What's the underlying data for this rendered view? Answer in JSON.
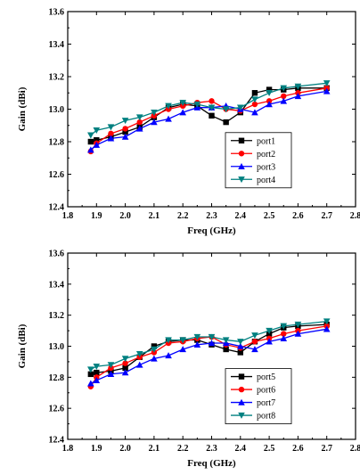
{
  "chart_data": [
    {
      "type": "line",
      "title": "",
      "xlabel": "Freq (GHz)",
      "ylabel": "Gain (dBi)",
      "xlim": [
        1.8,
        2.8
      ],
      "ylim": [
        12.4,
        13.6
      ],
      "xticks": [
        "1.8",
        "1.9",
        "2.0",
        "2.1",
        "2.2",
        "2.3",
        "2.4",
        "2.5",
        "2.6",
        "2.7",
        "2.8"
      ],
      "yticks": [
        "12.4",
        "12.6",
        "12.8",
        "13.0",
        "13.2",
        "13.4",
        "13.6"
      ],
      "grid": false,
      "legend_position": "lower-right",
      "series": [
        {
          "name": "port1",
          "color": "#000000",
          "marker": "square",
          "x": [
            1.88,
            1.9,
            1.95,
            2.0,
            2.05,
            2.1,
            2.15,
            2.2,
            2.25,
            2.3,
            2.35,
            2.4,
            2.45,
            2.5,
            2.55,
            2.6,
            2.7
          ],
          "y": [
            12.8,
            12.81,
            12.83,
            12.86,
            12.89,
            12.95,
            13.01,
            13.03,
            13.02,
            12.96,
            12.92,
            12.98,
            13.1,
            13.12,
            13.12,
            13.13,
            13.13
          ]
        },
        {
          "name": "port2",
          "color": "#ff0000",
          "marker": "circle",
          "x": [
            1.88,
            1.9,
            1.95,
            2.0,
            2.05,
            2.1,
            2.15,
            2.2,
            2.25,
            2.3,
            2.35,
            2.4,
            2.45,
            2.5,
            2.55,
            2.6,
            2.7
          ],
          "y": [
            12.74,
            12.79,
            12.85,
            12.88,
            12.92,
            12.96,
            13.0,
            13.02,
            13.04,
            13.05,
            13.0,
            12.99,
            13.03,
            13.05,
            13.08,
            13.1,
            13.13
          ]
        },
        {
          "name": "port3",
          "color": "#0000ff",
          "marker": "triangle-up",
          "x": [
            1.88,
            1.9,
            1.95,
            2.0,
            2.05,
            2.1,
            2.15,
            2.2,
            2.25,
            2.3,
            2.35,
            2.4,
            2.45,
            2.5,
            2.55,
            2.6,
            2.7
          ],
          "y": [
            12.75,
            12.78,
            12.82,
            12.83,
            12.88,
            12.92,
            12.94,
            12.98,
            13.01,
            13.01,
            13.02,
            13.0,
            12.98,
            13.03,
            13.05,
            13.08,
            13.11
          ]
        },
        {
          "name": "port4",
          "color": "#008080",
          "marker": "triangle-down",
          "x": [
            1.88,
            1.9,
            1.95,
            2.0,
            2.05,
            2.1,
            2.15,
            2.2,
            2.25,
            2.3,
            2.35,
            2.4,
            2.45,
            2.5,
            2.55,
            2.6,
            2.7
          ],
          "y": [
            12.84,
            12.87,
            12.89,
            12.93,
            12.95,
            12.98,
            13.02,
            13.04,
            13.03,
            13.01,
            13.0,
            13.01,
            13.06,
            13.1,
            13.13,
            13.14,
            13.16
          ]
        }
      ]
    },
    {
      "type": "line",
      "title": "",
      "xlabel": "Freq (GHz)",
      "ylabel": "Gain (dBi)",
      "xlim": [
        1.8,
        2.8
      ],
      "ylim": [
        12.4,
        13.6
      ],
      "xticks": [
        "1.8",
        "1.9",
        "2.0",
        "2.1",
        "2.2",
        "2.3",
        "2.4",
        "2.5",
        "2.6",
        "2.7",
        "2.8"
      ],
      "yticks": [
        "12.4",
        "12.6",
        "12.8",
        "13.0",
        "13.2",
        "13.4",
        "13.6"
      ],
      "grid": false,
      "legend_position": "lower-right",
      "series": [
        {
          "name": "port5",
          "color": "#000000",
          "marker": "square",
          "x": [
            1.88,
            1.9,
            1.95,
            2.0,
            2.05,
            2.1,
            2.15,
            2.2,
            2.25,
            2.3,
            2.35,
            2.4,
            2.45,
            2.5,
            2.55,
            2.6,
            2.7
          ],
          "y": [
            12.82,
            12.83,
            12.84,
            12.86,
            12.93,
            13.0,
            13.03,
            13.04,
            13.04,
            13.01,
            12.98,
            12.96,
            13.03,
            13.08,
            13.12,
            13.13,
            13.14
          ]
        },
        {
          "name": "port6",
          "color": "#ff0000",
          "marker": "circle",
          "x": [
            1.88,
            1.9,
            1.95,
            2.0,
            2.05,
            2.1,
            2.15,
            2.2,
            2.25,
            2.3,
            2.35,
            2.4,
            2.45,
            2.5,
            2.55,
            2.6,
            2.7
          ],
          "y": [
            12.74,
            12.8,
            12.86,
            12.89,
            12.93,
            12.96,
            13.02,
            13.03,
            13.05,
            13.06,
            13.01,
            12.99,
            13.03,
            13.05,
            13.08,
            13.1,
            13.13
          ]
        },
        {
          "name": "port7",
          "color": "#0000ff",
          "marker": "triangle-up",
          "x": [
            1.88,
            1.9,
            1.95,
            2.0,
            2.05,
            2.1,
            2.15,
            2.2,
            2.25,
            2.3,
            2.35,
            2.4,
            2.45,
            2.5,
            2.55,
            2.6,
            2.7
          ],
          "y": [
            12.76,
            12.78,
            12.82,
            12.83,
            12.88,
            12.92,
            12.94,
            12.98,
            13.01,
            13.02,
            13.02,
            13.0,
            12.98,
            13.03,
            13.05,
            13.08,
            13.11
          ]
        },
        {
          "name": "port8",
          "color": "#008080",
          "marker": "triangle-down",
          "x": [
            1.88,
            1.9,
            1.95,
            2.0,
            2.05,
            2.1,
            2.15,
            2.2,
            2.25,
            2.3,
            2.35,
            2.4,
            2.45,
            2.5,
            2.55,
            2.6,
            2.7
          ],
          "y": [
            12.85,
            12.87,
            12.88,
            12.92,
            12.95,
            12.98,
            13.04,
            13.04,
            13.06,
            13.06,
            13.04,
            13.03,
            13.07,
            13.1,
            13.13,
            13.14,
            13.16
          ]
        }
      ]
    }
  ]
}
